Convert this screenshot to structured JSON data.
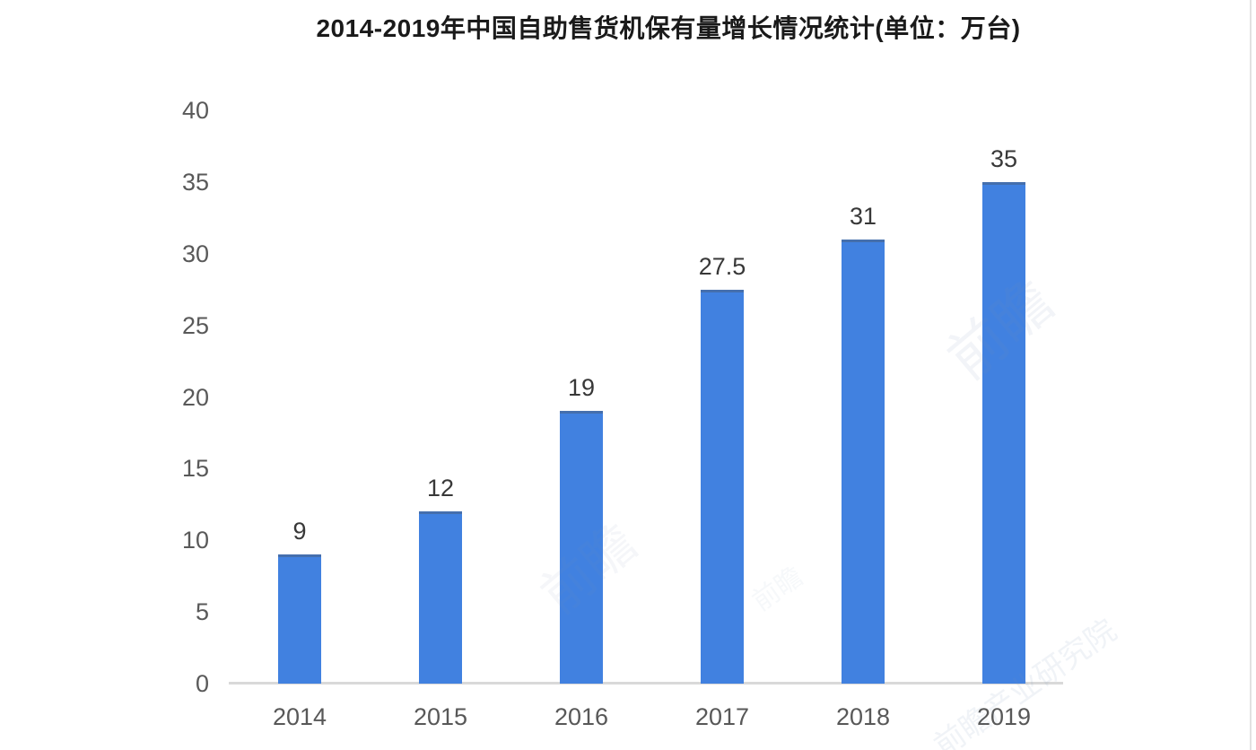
{
  "page": {
    "background": "#ffffff"
  },
  "chart_data": {
    "type": "bar",
    "title": "2014-2019年中国自助售货机保有量增长情况统计(单位：万台)",
    "categories": [
      "2014",
      "2015",
      "2016",
      "2017",
      "2018",
      "2019"
    ],
    "values": [
      9,
      12,
      19,
      27.5,
      31,
      35
    ],
    "value_labels": [
      "9",
      "12",
      "19",
      "27.5",
      "31",
      "35"
    ],
    "xlabel": "",
    "ylabel": "",
    "ylim": [
      0,
      40
    ],
    "yticks": [
      0,
      5,
      10,
      15,
      20,
      25,
      30,
      35,
      40
    ],
    "grid": false,
    "legend": "none",
    "bar_color": "#4181e0",
    "axis_line_color": "#d9d9d9",
    "title_color": "#1a1a1a",
    "tick_color": "#595959",
    "value_label_color": "#383838"
  },
  "watermark": {
    "text": "前瞻",
    "text_long": "前瞻产业研究院"
  }
}
